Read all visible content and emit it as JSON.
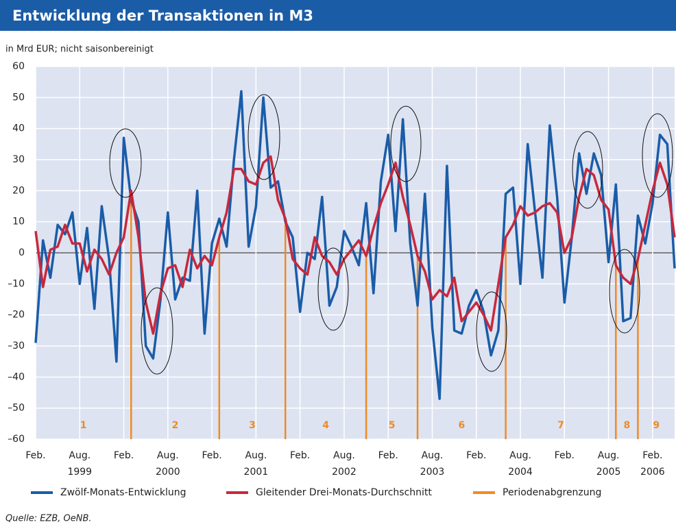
{
  "chart_data": {
    "type": "line",
    "title": "Entwicklung der Transaktionen in M3",
    "subtitle": "in Mrd EUR; nicht saisonbereinigt",
    "source": "Quelle: EZB, OeNB.",
    "categories": [
      "Feb.",
      null,
      null,
      null,
      null,
      null,
      "Aug.",
      null,
      null,
      null,
      null,
      null,
      "Feb.",
      null,
      null,
      null,
      null,
      null,
      "Aug.",
      null,
      null,
      null,
      null,
      null,
      "Feb.",
      null,
      null,
      null,
      null,
      null,
      "Aug.",
      null,
      null,
      null,
      null,
      null,
      "Feb.",
      null,
      null,
      null,
      null,
      null,
      "Aug.",
      null,
      null,
      null,
      null,
      null,
      "Feb.",
      null,
      null,
      null,
      null,
      null,
      "Aug.",
      null,
      null,
      null,
      null,
      null,
      "Feb.",
      null,
      null,
      null,
      null,
      null,
      "Aug.",
      null,
      null,
      null,
      null,
      null,
      "Feb.",
      null,
      null,
      null,
      null,
      null,
      "Aug.",
      null,
      null,
      null,
      null,
      null,
      "Feb.",
      null,
      null,
      null
    ],
    "category_years": [
      null,
      null,
      null,
      null,
      null,
      null,
      "1999",
      null,
      null,
      null,
      null,
      null,
      null,
      null,
      null,
      null,
      null,
      null,
      "2000",
      null,
      null,
      null,
      null,
      null,
      null,
      null,
      null,
      null,
      null,
      null,
      "2001",
      null,
      null,
      null,
      null,
      null,
      null,
      null,
      null,
      null,
      null,
      null,
      "2002",
      null,
      null,
      null,
      null,
      null,
      null,
      null,
      null,
      null,
      null,
      null,
      "2003",
      null,
      null,
      null,
      null,
      null,
      null,
      null,
      null,
      null,
      null,
      null,
      "2004",
      null,
      null,
      null,
      null,
      null,
      null,
      null,
      null,
      null,
      null,
      null,
      "2005",
      null,
      null,
      null,
      null,
      null,
      "2006",
      null,
      null,
      null
    ],
    "series": [
      {
        "name": "Zwölf-Monats-Entwicklung",
        "color": "#1a5ca8",
        "values": [
          -29,
          4,
          -8,
          9,
          6,
          13,
          -10,
          8,
          -18,
          15,
          -2,
          -35,
          37,
          17,
          10,
          -30,
          -34,
          -15,
          13,
          -15,
          -8,
          -9,
          20,
          -26,
          3,
          11,
          2,
          30,
          52,
          2,
          15,
          50,
          21,
          23,
          10,
          5,
          -19,
          0,
          -2,
          18,
          -17,
          -11,
          7,
          2,
          -4,
          16,
          -13,
          23,
          38,
          7,
          43,
          3,
          -17,
          19,
          -24,
          -47,
          28,
          -25,
          -26,
          -17,
          -12,
          -19,
          -33,
          -25,
          19,
          21,
          -10,
          35,
          13,
          -8,
          41,
          18,
          -16,
          5,
          32,
          19,
          32,
          25,
          -3,
          22,
          -22,
          -21,
          12,
          3,
          16,
          38,
          35,
          -5
        ]
      },
      {
        "name": "Gleitender Drei-Monats-Durchschnitt",
        "color": "#c8283c",
        "values": [
          7,
          -11,
          1,
          2,
          9,
          3,
          3,
          -6,
          1,
          -2,
          -7,
          0,
          5,
          20,
          5,
          -16,
          -26,
          -13,
          -5,
          -4,
          -11,
          1,
          -5,
          -1,
          -4,
          5,
          13,
          27,
          27,
          23,
          22,
          29,
          31,
          17,
          11,
          -2,
          -5,
          -7,
          5,
          -1,
          -3,
          -7,
          -2,
          1,
          4,
          -1,
          8,
          16,
          22,
          29,
          18,
          9,
          -1,
          -6,
          -15,
          -12,
          -14,
          -8,
          -22,
          -19,
          -16,
          -20,
          -25,
          -10,
          5,
          9,
          15,
          12,
          13,
          15,
          16,
          13,
          0,
          5,
          18,
          27,
          25,
          17,
          14,
          -4,
          -8,
          -10,
          -2,
          9,
          20,
          29,
          22,
          5
        ]
      }
    ],
    "boundaries": {
      "name": "Periodenabgrenzung",
      "color": "#f08a24",
      "indices": [
        13,
        25,
        34,
        45,
        52,
        64,
        79,
        82
      ]
    },
    "period_labels": [
      "1",
      "2",
      "3",
      "4",
      "5",
      "6",
      "7",
      "8",
      "9"
    ],
    "ylim": [
      -60,
      60
    ],
    "yticks": [
      {
        "value": -60,
        "label": "–60"
      },
      {
        "value": -50,
        "label": "–50"
      },
      {
        "value": -40,
        "label": "–40"
      },
      {
        "value": -30,
        "label": "–30"
      },
      {
        "value": -20,
        "label": "–20"
      },
      {
        "value": -10,
        "label": "–10"
      },
      0,
      10,
      20,
      30,
      40,
      50,
      60
    ],
    "grid": true
  }
}
